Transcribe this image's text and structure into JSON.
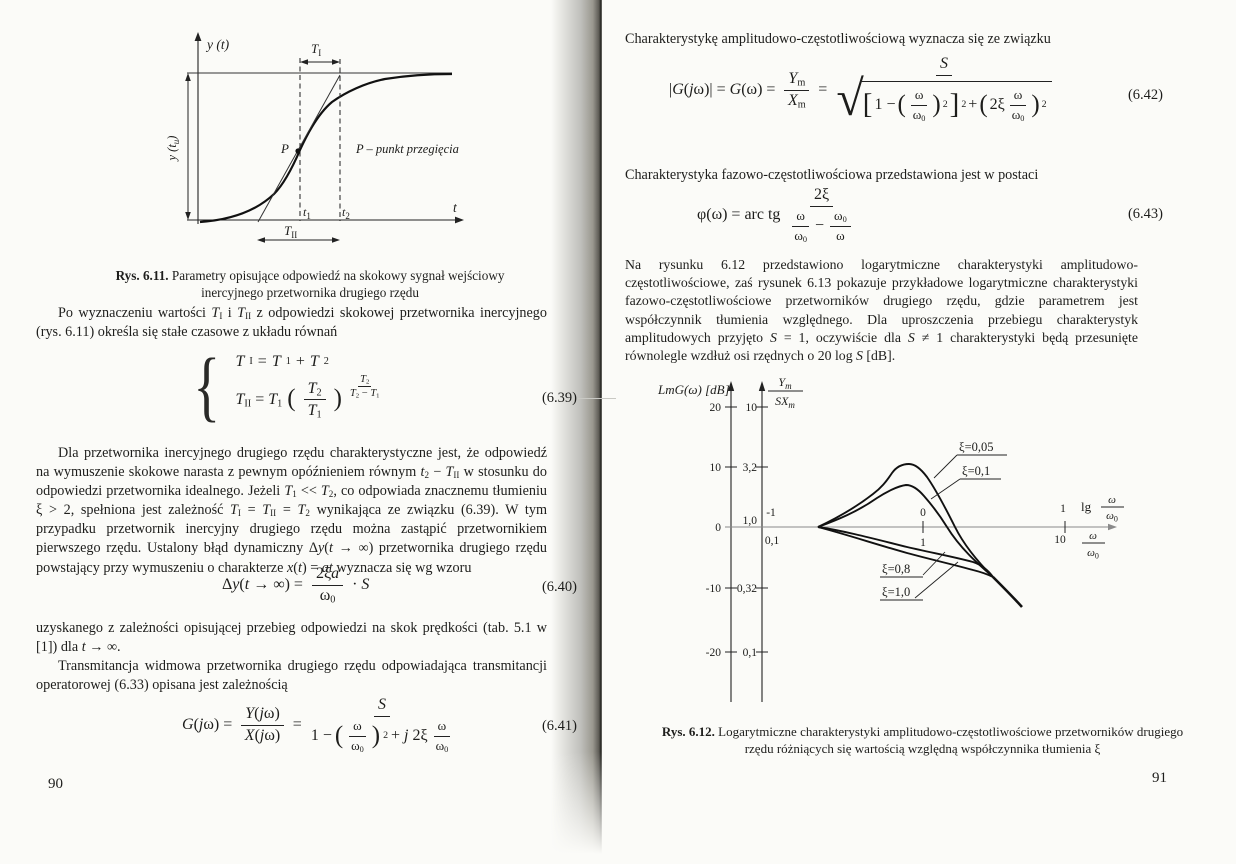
{
  "left_page": {
    "caption11": "<b>Rys. 6.11.</b> Parametry opisujące odpowiedź na skokowy sygnał wejściowy inercyjnego przetwornika drugiego rzędu",
    "p1": "Po wyznaczeniu wartości <i>T</i><sub>I</sub> i <i>T</i><sub>II</sub> z odpowiedzi skokowej przetwornika inercyjnego (rys. 6.11) określa się stałe czasowe z układu równań",
    "p2": "Dla przetwornika inercyjnego drugiego rzędu charakterystyczne jest, że odpowiedź na wymuszenie skokowe narasta z pewnym opóźnieniem równym <i>t</i><sub>2</sub> − <i>T</i><sub>II</sub> w stosunku do odpowiedzi przetwornika idealnego. Jeżeli <i>T</i><sub>1</sub> &lt;&lt; <i>T</i><sub>2</sub>, co odpowiada znacznemu tłumieniu ξ &gt; 2, spełniona jest zależność <i>T</i><sub>I</sub> = <i>T</i><sub>II</sub> = <i>T</i><sub>2</sub> wynikająca ze związku (6.39). W tym przypadku przetwornik inercyjny drugiego rzędu można zastąpić przetwornikiem pierwszego rzędu. Ustalony błąd dynamiczny Δ<i>y</i>(<i>t</i> → ∞) przetwornika drugiego rzędu powstający przy wymuszeniu o charakterze <i>x</i>(<i>t</i>) = <i>at</i> wyznacza się wg wzoru",
    "p3": "uzyskanego z zależności opisującej przebieg odpowiedzi na skok prędkości (tab. 5.1 w [1]) dla <i>t</i> → ∞.",
    "p4": "Transmitancja widmowa przetwornika drugiego rzędu odpowiadająca transmitancji operatorowej (6.33) opisana jest zależnością",
    "page_no": "90"
  },
  "right_page": {
    "p1": "Charakterystykę amplitudowo-częstotliwościową wyznacza się ze związku",
    "p2": "Charakterystyka fazowo-częstotliwościowa przedstawiona jest w postaci",
    "p3": "Na rysunku 6.12 przedstawiono logarytmiczne charakterystyki amplitudowo-częstotliwościowe, zaś rysunek 6.13 pokazuje przykładowe logarytmiczne charakterystyki fazowo-częstotliwościowe przetworników drugiego rzędu, gdzie parametrem jest współczynnik tłumienia względnego. Dla uproszczenia przebiegu charakterystyk amplitudowych przyjęto <i>S</i> = 1, oczywiście dla <i>S</i> ≠ 1 charakterystyki będą przesunięte równolegle wzdłuż osi rzędnych o 20 log <i>S</i> [dB].",
    "caption12": "<b>Rys. 6.12.</b> Logarytmiczne charakterystyki amplitudowo-częstotliwościowe przetworników drugiego rzędu różniących się wartością względną współczynnika tłumienia ξ",
    "page_no": "91"
  },
  "equations": {
    "sym": {
      "lp": "(",
      "rp": ")",
      "lb": "[",
      "rb": "]",
      "sup2": "2",
      "plus": "+"
    },
    "e39": {
      "no": "(6.39)",
      "r1": "<i>T</i><sub>I</sub> = <i>T</i><sub>1</sub> + <i>T</i><sub>2</sub>",
      "r2_lhs": "<i>T</i><sub>II</sub> = <i>T</i><sub>1</sub>",
      "f_num": "<i>T</i><sub>2</sub>",
      "f_den": "<i>T</i><sub>1</sub>",
      "exp_num": "<i>T</i><sub>2</sub>",
      "exp_den": "<i>T</i><sub>2</sub> − <i>T</i><sub>1</sub>"
    },
    "e40": {
      "no": "(6.40)",
      "lhs": "Δ<i>y</i>(<i>t</i> → ∞) =",
      "f_num": "2ξ<i>a</i>",
      "f_den": "ω<sub>0</sub>",
      "tail": "· <i>S</i>"
    },
    "e41": {
      "no": "(6.41)",
      "lhs": "<i>G</i>(<i>j</i>ω) =",
      "f1_num": "<i>Y</i>(<i>j</i>ω)",
      "f1_den": "<i>X</i>(<i>j</i>ω)",
      "eq2": "=",
      "f2_num": "<i>S</i>",
      "den_a": "1 −",
      "den_b": "+ <i>j</i> 2ξ",
      "w_num": "ω",
      "w_den": "ω<sub>0</sub>"
    },
    "e42": {
      "no": "(6.42)",
      "lhs": "|<i>G</i>(<i>j</i>ω)| = <i>G</i>(ω) =",
      "f1_num": "<i>Y</i><sub>m</sub>",
      "f1_den": "<i>X</i><sub>m</sub>",
      "eq2": "=",
      "f2_num": "<i>S</i>",
      "rad_a": "1 −",
      "two_xi": "2ξ",
      "w_num": "ω",
      "w_den": "ω<sub>0</sub>"
    },
    "e43": {
      "no": "(6.43)",
      "lhs": "φ(ω) = arc tg",
      "f_num": "2ξ",
      "minus": "−",
      "w1_num": "ω",
      "w1_den": "ω<sub>0</sub>",
      "w2_num": "ω<sub>0</sub>",
      "w2_den": "ω"
    }
  },
  "fig11": {
    "y_axis_label": "y (t)",
    "x_axis_label": "t",
    "steady_a": "y (t",
    "steady_sub": "u",
    "steady_b": ")",
    "p_label": "P",
    "p_note": "P – punkt przegięcia",
    "t1_a": "t",
    "t1_sub": "1",
    "t2_a": "t",
    "t2_sub": "2",
    "TI_a": "T",
    "TI_sub": "I",
    "TII_a": "T",
    "TII_sub": "II"
  },
  "fig12": {
    "y_label_db": "LmG(ω) [dB]",
    "db_ticks": [
      "20",
      "10",
      "0",
      "-10",
      "-20"
    ],
    "ratio_ticks": [
      "10",
      "3,2",
      "1,0",
      "0,32",
      "0,1"
    ],
    "ratio_num_a": "Y",
    "ratio_num_sub": "m",
    "ratio_den_a": "SX",
    "ratio_den_sub": "m",
    "x_upper": [
      "-1",
      "0",
      "1"
    ],
    "x_lower": [
      "0,1",
      "1",
      "10"
    ],
    "lg": "lg",
    "w_num": "ω",
    "w_den_a": "ω",
    "w_den_sub": "0",
    "curve_labels": [
      "ξ=0,05",
      "ξ=0,1",
      "ξ=0,8",
      "ξ=1,0"
    ],
    "chart_data": {
      "type": "line",
      "x_axis": "lg ω/ω0 (log scale, decade ticks at 0,1 / 1 / 10)",
      "y_axis_left": "LmG(ω) [dB], ticks 20,10,0,-10,-20",
      "y_axis_right": "Ym/SXm, ticks 10; 3,2; 1,0; 0,32; 0,1",
      "series": [
        {
          "name": "ξ=0,05",
          "shape": "resonance peak ≈ +10.5 dB near ω/ω0≈1, falls to ≈ −13 dB at ω/ω0≈4.5"
        },
        {
          "name": "ξ=0,1",
          "shape": "resonance peak ≈ +7 dB near ω/ω0≈1, merges with others at ≈ −8.5 dB"
        },
        {
          "name": "ξ=0,8",
          "shape": "monotonic decrease below 0 dB, ≈ −4 dB at ω/ω0≈1"
        },
        {
          "name": "ξ=1,0",
          "shape": "monotonic decrease below 0 dB, ≈ −6 dB at ω/ω0≈1"
        }
      ]
    }
  }
}
